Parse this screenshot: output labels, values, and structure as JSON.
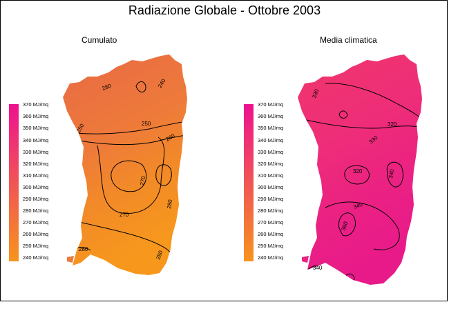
{
  "title": "Radiazione Globale - Ottobre 2003",
  "panels": [
    {
      "title": "Cumulato",
      "gradient": [
        "#e86a45",
        "#ee7a3a",
        "#f28a28",
        "#f7981d"
      ],
      "legend": [
        "370 MJ/mq",
        "360 MJ/mq",
        "350 MJ/mq",
        "340 MJ/mq",
        "330 MJ/mq",
        "320 MJ/mq",
        "310 MJ/mq",
        "300 MJ/mq",
        "290 MJ/mq",
        "280 MJ/mq",
        "270 MJ/mq",
        "260 MJ/mq",
        "250 MJ/mq",
        "240 MJ/mq"
      ],
      "labels": [
        "240",
        "250",
        "250",
        "260",
        "270",
        "270",
        "280",
        "280",
        "280",
        "280",
        "280"
      ]
    },
    {
      "title": "Media climatica",
      "gradient": [
        "#f0366a",
        "#ee2e78",
        "#eb2282",
        "#e81a8a"
      ],
      "legend": [
        "370 MJ/mq",
        "360 MJ/mq",
        "350 MJ/mq",
        "340 MJ/mq",
        "330 MJ/mq",
        "320 MJ/mq",
        "310 MJ/mq",
        "300 MJ/mq",
        "290 MJ/mq",
        "280 MJ/mq",
        "270 MJ/mq",
        "260 MJ/mq",
        "250 MJ/mq",
        "240 MJ/mq"
      ],
      "labels": [
        "330",
        "320",
        "330",
        "320",
        "340",
        "340",
        "360",
        "340"
      ]
    }
  ],
  "legend_colors": {
    "top": "#ee1190",
    "mid": "#f05555",
    "bottom": "#f7941d"
  }
}
